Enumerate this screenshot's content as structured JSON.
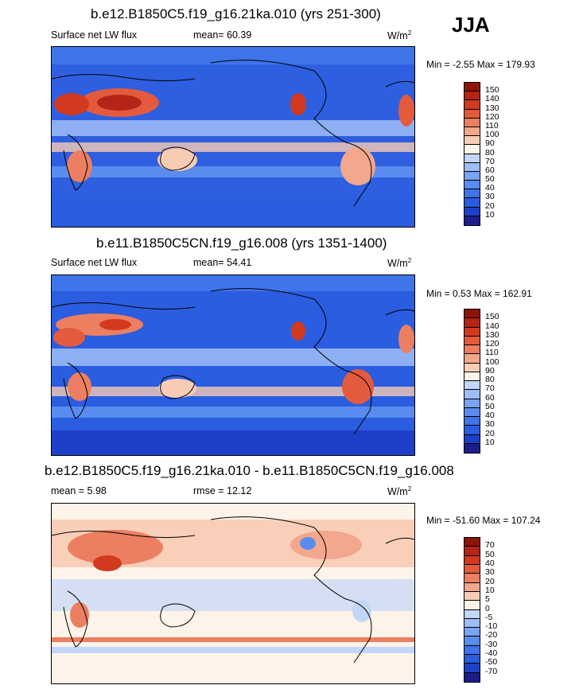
{
  "season": "JJA",
  "colors": {
    "abs_scale": [
      "#1d1d8c",
      "#1e3fc8",
      "#2a5de0",
      "#3f74ea",
      "#5a8cf0",
      "#7aa4f3",
      "#9fbdf6",
      "#c3d6f8",
      "#fdf3e8",
      "#f8cbb4",
      "#f3a78c",
      "#ec7f61",
      "#e45a3d",
      "#d23a1f",
      "#b52416",
      "#8e1409"
    ],
    "diff_scale": [
      "#1d1d8c",
      "#1e3fc8",
      "#2a5de0",
      "#3f74ea",
      "#5a8cf0",
      "#7aa4f3",
      "#9fbdf6",
      "#c3d6f8",
      "#fdf3e8",
      "#f8cbb4",
      "#f3a78c",
      "#ec7f61",
      "#e45a3d",
      "#d23a1f",
      "#b52416",
      "#8e1409"
    ]
  },
  "panels": [
    {
      "title": "b.e12.B1850C5.f19_g16.21ka.010 (yrs 251-300)",
      "left_label": "Surface net LW flux",
      "center_label": "mean=  60.39",
      "units": "W/m",
      "units_exp": "2",
      "minmax": "Min =  -2.55 Max = 179.93",
      "colorbar_labels": [
        "150",
        "140",
        "130",
        "120",
        "110",
        "100",
        "90",
        "80",
        "70",
        "60",
        "50",
        "40",
        "30",
        "20",
        "10"
      ]
    },
    {
      "title": "b.e11.B1850C5CN.f19_g16.008 (yrs 1351-1400)",
      "left_label": "Surface net LW flux",
      "center_label": "mean=  54.41",
      "units": "W/m",
      "units_exp": "2",
      "minmax": "Min =   0.53 Max = 162.91",
      "colorbar_labels": [
        "150",
        "140",
        "130",
        "120",
        "110",
        "100",
        "90",
        "80",
        "70",
        "60",
        "50",
        "40",
        "30",
        "20",
        "10"
      ]
    },
    {
      "title": "b.e12.B1850C5.f19_g16.21ka.010 - b.e11.B1850C5CN.f19_g16.008",
      "left_label": "mean =   5.98",
      "center_label": "rmse =  12.12",
      "units": "W/m",
      "units_exp": "2",
      "minmax": "Min = -51.60 Max = 107.24",
      "colorbar_labels": [
        "70",
        "50",
        "40",
        "30",
        "20",
        "10",
        "5",
        "0",
        "-5",
        "-10",
        "-20",
        "-30",
        "-40",
        "-50",
        "-70"
      ]
    }
  ],
  "chart_data": [
    {
      "type": "heatmap",
      "title": "b.e12.B1850C5.f19_g16.21ka.010 (yrs 251-300)",
      "variable": "Surface net LW flux",
      "mean": 60.39,
      "min": -2.55,
      "max": 179.93,
      "units": "W/m2",
      "levels": [
        10,
        20,
        30,
        40,
        50,
        60,
        70,
        80,
        90,
        100,
        110,
        120,
        130,
        140,
        150
      ],
      "colorbar": "right"
    },
    {
      "type": "heatmap",
      "title": "b.e11.B1850C5CN.f19_g16.008 (yrs 1351-1400)",
      "variable": "Surface net LW flux",
      "mean": 54.41,
      "min": 0.53,
      "max": 162.91,
      "units": "W/m2",
      "levels": [
        10,
        20,
        30,
        40,
        50,
        60,
        70,
        80,
        90,
        100,
        110,
        120,
        130,
        140,
        150
      ],
      "colorbar": "right"
    },
    {
      "type": "heatmap",
      "title": "b.e12.B1850C5.f19_g16.21ka.010 - b.e11.B1850C5CN.f19_g16.008",
      "mean": 5.98,
      "rmse": 12.12,
      "min": -51.6,
      "max": 107.24,
      "units": "W/m2",
      "levels": [
        -70,
        -50,
        -40,
        -30,
        -20,
        -10,
        -5,
        0,
        5,
        10,
        20,
        30,
        40,
        50,
        70
      ],
      "colorbar": "right"
    }
  ]
}
